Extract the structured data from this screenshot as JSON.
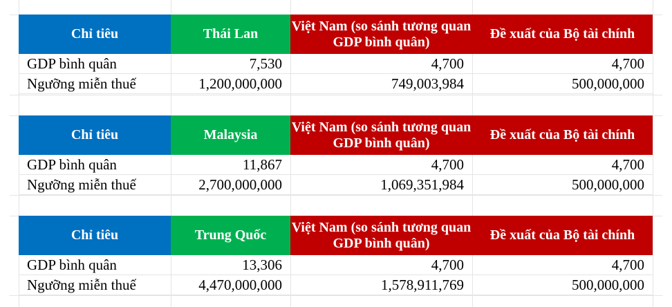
{
  "colors": {
    "label_header": "#0070c0",
    "country_header": "#00b050",
    "vietnam_header": "#c00000",
    "proposal_header": "#c00000"
  },
  "tables": [
    {
      "headers": [
        "Chỉ tiêu",
        "Thái Lan",
        "Việt Nam (so sánh tương quan GDP bình quân)",
        "Đề xuất của Bộ tài chính"
      ],
      "rows": [
        [
          "GDP bình quân",
          "7,530",
          "4,700",
          "4,700"
        ],
        [
          "Ngưỡng miễn thuế",
          "1,200,000,000",
          "749,003,984",
          "500,000,000"
        ]
      ]
    },
    {
      "headers": [
        "Chỉ tiêu",
        "Malaysia",
        "Việt Nam (so sánh tương quan GDP bình quân)",
        "Đề xuất của Bộ tài chính"
      ],
      "rows": [
        [
          "GDP bình quân",
          "11,867",
          "4,700",
          "4,700"
        ],
        [
          "Ngưỡng miễn thuế",
          "2,700,000,000",
          "1,069,351,984",
          "500,000,000"
        ]
      ]
    },
    {
      "headers": [
        "Chỉ tiêu",
        "Trung Quốc",
        "Việt Nam (so sánh tương quan GDP bình quân)",
        "Đề xuất của Bộ tài chính"
      ],
      "rows": [
        [
          "GDP bình quân",
          "13,306",
          "4,700",
          "4,700"
        ],
        [
          "Ngưỡng miễn thuế",
          "4,470,000,000",
          "1,578,911,769",
          "500,000,000"
        ]
      ]
    }
  ]
}
